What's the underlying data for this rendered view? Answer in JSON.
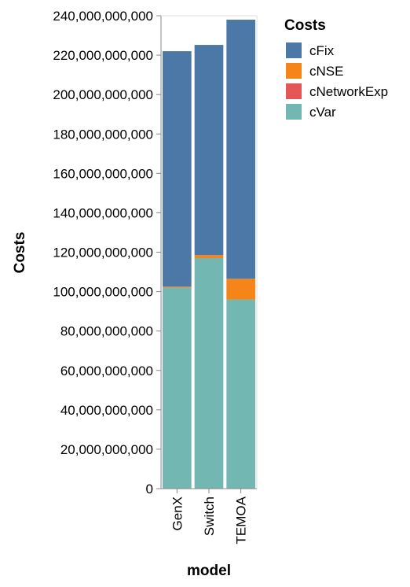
{
  "chart_data": {
    "type": "bar",
    "stacked": true,
    "categories": [
      "GenX",
      "Switch",
      "TEMOA"
    ],
    "series": [
      {
        "name": "cVar",
        "color": "#72b7b2",
        "values": [
          102000000000,
          117000000000,
          96000000000
        ]
      },
      {
        "name": "cNetworkExp",
        "color": "#e45756",
        "values": [
          0,
          0,
          0
        ]
      },
      {
        "name": "cNSE",
        "color": "#f58518",
        "values": [
          500000000,
          1500000000,
          10500000000
        ]
      },
      {
        "name": "cFix",
        "color": "#4c78a8",
        "values": [
          119500000000,
          106700000000,
          131500000000
        ]
      }
    ],
    "xlabel": "model",
    "ylabel": "Costs",
    "ylim": [
      0,
      240000000000
    ],
    "yticks": [
      0,
      20000000000,
      40000000000,
      60000000000,
      80000000000,
      100000000000,
      120000000000,
      140000000000,
      160000000000,
      180000000000,
      200000000000,
      220000000000,
      240000000000
    ],
    "legend": {
      "title": "Costs",
      "position": "top-right",
      "entries": [
        {
          "label": "cFix",
          "color": "#4c78a8"
        },
        {
          "label": "cNSE",
          "color": "#f58518"
        },
        {
          "label": "cNetworkExp",
          "color": "#e45756"
        },
        {
          "label": "cVar",
          "color": "#72b7b2"
        }
      ]
    }
  }
}
